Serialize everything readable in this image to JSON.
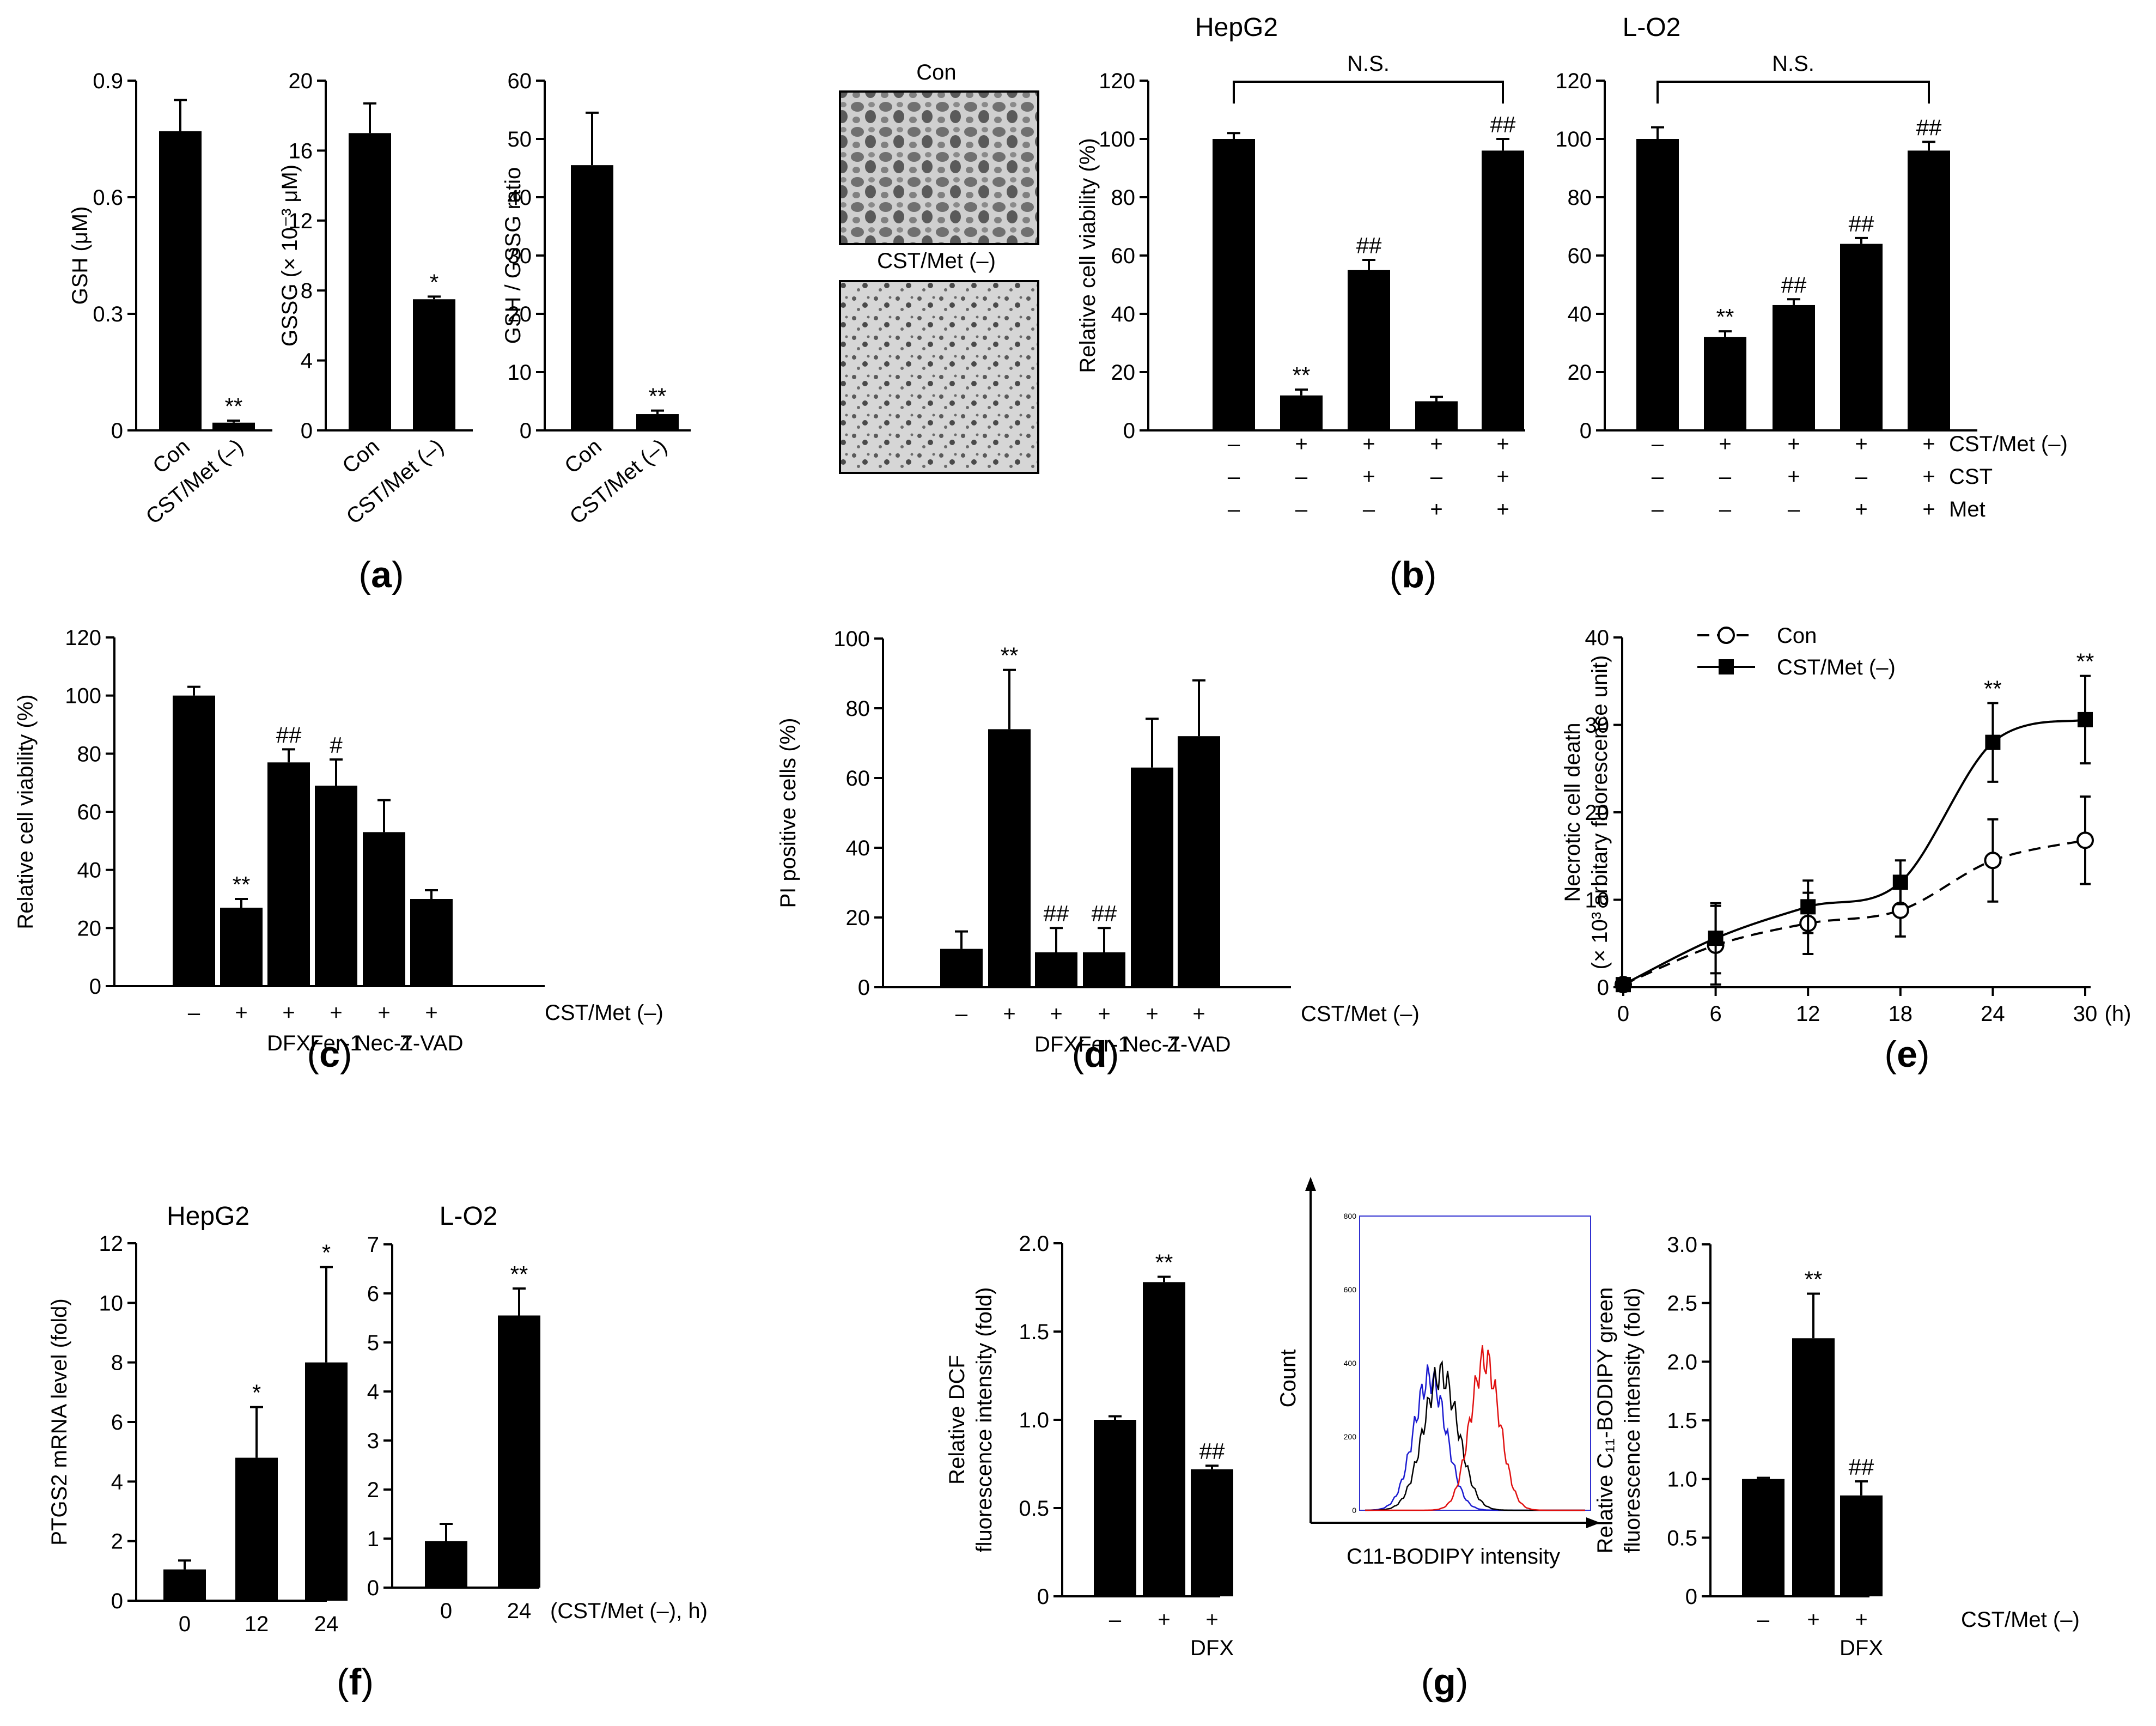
{
  "figure_labels": {
    "a": "a",
    "b": "b",
    "c": "c",
    "d": "d",
    "e": "e",
    "f": "f",
    "g": "g"
  },
  "micrograph_labels": {
    "con": "Con",
    "cst": "CST/Met (–)"
  },
  "condition_labels": {
    "cst_met": "CST/Met (–)",
    "cst": "CST",
    "met": "Met",
    "time_axis": "(CST/Met (–), h)"
  },
  "chart_data": [
    {
      "id": "a1",
      "type": "bar",
      "categories": [
        "Con",
        "CST/Met (–)"
      ],
      "values": [
        0.77,
        0.02
      ],
      "errors": [
        0.08,
        0.005
      ],
      "annotations": [
        "",
        "**"
      ],
      "ylabel": "GSH (μM)",
      "ylim": [
        0,
        0.9
      ],
      "yticks": [
        0,
        0.3,
        0.6,
        0.9
      ]
    },
    {
      "id": "a2",
      "type": "bar",
      "categories": [
        "Con",
        "CST/Met (–)"
      ],
      "values": [
        17.0,
        7.5
      ],
      "errors": [
        1.7,
        0.15
      ],
      "annotations": [
        "",
        "*"
      ],
      "ylabel": "GSSG (× 10⁻³ μM)",
      "ylim": [
        0,
        20
      ],
      "yticks": [
        0,
        4,
        8,
        12,
        16,
        20
      ]
    },
    {
      "id": "a3",
      "type": "bar",
      "categories": [
        "Con",
        "CST/Met (–)"
      ],
      "values": [
        45.5,
        2.8
      ],
      "errors": [
        9,
        0.6
      ],
      "annotations": [
        "",
        "**"
      ],
      "ylabel": "GSH / GSSG ratio",
      "ylim": [
        0,
        60
      ],
      "yticks": [
        0,
        10,
        20,
        30,
        40,
        50,
        60
      ]
    },
    {
      "id": "b1",
      "type": "bar",
      "title": "HepG2",
      "values": [
        100,
        12,
        55,
        10,
        96
      ],
      "errors": [
        2,
        2,
        3.5,
        1.5,
        4
      ],
      "annotations": [
        "",
        "**",
        "##",
        "",
        "##"
      ],
      "bracket": "N.S.",
      "ylabel": "Relative cell viability (%)",
      "ylim": [
        0,
        120
      ],
      "yticks": [
        0,
        20,
        40,
        60,
        80,
        100,
        120
      ],
      "conditions": {
        "CST/Met (–)": [
          "–",
          "+",
          "+",
          "+",
          "+"
        ],
        "CST": [
          "–",
          "–",
          "+",
          "–",
          "+"
        ],
        "Met": [
          "–",
          "–",
          "–",
          "+",
          "+"
        ]
      }
    },
    {
      "id": "b2",
      "type": "bar",
      "title": "L-O2",
      "values": [
        100,
        32,
        43,
        64,
        96
      ],
      "errors": [
        4,
        2,
        2,
        2,
        3
      ],
      "annotations": [
        "",
        "**",
        "##",
        "##",
        "##"
      ],
      "bracket": "N.S.",
      "ylim": [
        0,
        120
      ],
      "yticks": [
        0,
        20,
        40,
        60,
        80,
        100,
        120
      ]
    },
    {
      "id": "c",
      "type": "bar",
      "values": [
        100,
        27,
        77,
        69,
        53,
        30
      ],
      "errors": [
        3,
        3,
        4.5,
        9,
        11,
        3
      ],
      "annotations": [
        "",
        "**",
        "##",
        "#",
        "",
        ""
      ],
      "ylabel": "Relative cell viability (%)",
      "ylim": [
        0,
        120
      ],
      "yticks": [
        0,
        20,
        40,
        60,
        80,
        100,
        120
      ],
      "cst_met": [
        "–",
        "+",
        "+",
        "+",
        "+",
        "+"
      ],
      "treatments": [
        "",
        "",
        "DFX",
        "Fer-1",
        "Nec-1",
        "Z-VAD"
      ]
    },
    {
      "id": "d",
      "type": "bar",
      "values": [
        11,
        74,
        10,
        10,
        63,
        72
      ],
      "errors": [
        5,
        17,
        7,
        7,
        14,
        16
      ],
      "annotations": [
        "",
        "**",
        "##",
        "##",
        "",
        ""
      ],
      "ylabel": "PI positive cells (%)",
      "ylim": [
        0,
        100
      ],
      "yticks": [
        0,
        20,
        40,
        60,
        80,
        100
      ],
      "cst_met": [
        "–",
        "+",
        "+",
        "+",
        "+",
        "+"
      ],
      "treatments": [
        "",
        "",
        "DFX",
        "Fer-1",
        "Nec-1",
        "Z-VAD"
      ]
    },
    {
      "id": "e",
      "type": "line",
      "x": [
        0,
        6,
        12,
        18,
        24,
        30
      ],
      "series": [
        {
          "name": "Con",
          "values": [
            0.3,
            4.8,
            7.3,
            8.8,
            14.5,
            16.8
          ],
          "errors": [
            0.3,
            4.5,
            3.5,
            3,
            4.7,
            5
          ]
        },
        {
          "name": "CST/Met (–)",
          "values": [
            0.3,
            5.6,
            9.2,
            12,
            28,
            30.6
          ],
          "errors": [
            0.3,
            4,
            3,
            2.5,
            4.5,
            5
          ]
        }
      ],
      "annotations": {
        "24": "**",
        "30": "**"
      },
      "ylabel": "Necrotic cell death",
      "ylabel2": "(× 10³ arbitary fluorescence unit)",
      "xunit": "(h)",
      "xlim": [
        0,
        30
      ],
      "ylim": [
        0,
        40
      ],
      "yticks": [
        0,
        10,
        20,
        30,
        40
      ]
    },
    {
      "id": "f1",
      "type": "bar",
      "title": "HepG2",
      "categories": [
        "0",
        "12",
        "24"
      ],
      "values": [
        1.05,
        4.8,
        8.0
      ],
      "errors": [
        0.3,
        1.7,
        3.2
      ],
      "annotations": [
        "",
        "*",
        "*"
      ],
      "ylabel": "PTGS2 mRNA level (fold)",
      "ylim": [
        0,
        12
      ],
      "yticks": [
        0,
        2,
        4,
        6,
        8,
        10,
        12
      ]
    },
    {
      "id": "f2",
      "type": "bar",
      "title": "L-O2",
      "categories": [
        "0",
        "24"
      ],
      "values": [
        0.95,
        5.55
      ],
      "errors": [
        0.35,
        0.55
      ],
      "annotations": [
        "",
        "**"
      ],
      "ylim": [
        0,
        7
      ],
      "yticks": [
        0,
        1,
        2,
        3,
        4,
        5,
        6,
        7
      ]
    },
    {
      "id": "g1",
      "type": "bar",
      "values": [
        1.0,
        1.78,
        0.72
      ],
      "errors": [
        0.02,
        0.03,
        0.02
      ],
      "annotations": [
        "",
        "**",
        "##"
      ],
      "ylabel": "Relative DCF",
      "ylabel2": "fluorescence intensity (fold)",
      "ylim": [
        0,
        2.0
      ],
      "yticks": [
        "0",
        "0.5",
        "1.0",
        "1.5",
        "2.0"
      ],
      "cst_met": [
        "–",
        "+",
        "+"
      ],
      "treatments": [
        "",
        "",
        "DFX"
      ]
    },
    {
      "id": "g2",
      "type": "histogram",
      "xlabel": "C11-BODIPY intensity",
      "ylabel": "Count",
      "series": [
        "blue",
        "black",
        "red"
      ],
      "ylim": [
        0,
        800
      ],
      "yticks": [
        "0",
        "200",
        "400",
        "600",
        "800"
      ]
    },
    {
      "id": "g3",
      "type": "bar",
      "values": [
        1.0,
        2.2,
        0.86
      ],
      "errors": [
        0.01,
        0.38,
        0.12
      ],
      "annotations": [
        "",
        "**",
        "##"
      ],
      "ylabel": "Relative C₁₁-BODIPY green",
      "ylabel2": "fluorescence intensity (fold)",
      "ylim": [
        0,
        3.0
      ],
      "yticks": [
        "0",
        "0.5",
        "1.0",
        "1.5",
        "2.0",
        "2.5",
        "3.0"
      ],
      "cst_met": [
        "–",
        "+",
        "+"
      ],
      "treatments": [
        "",
        "",
        "DFX"
      ]
    }
  ]
}
